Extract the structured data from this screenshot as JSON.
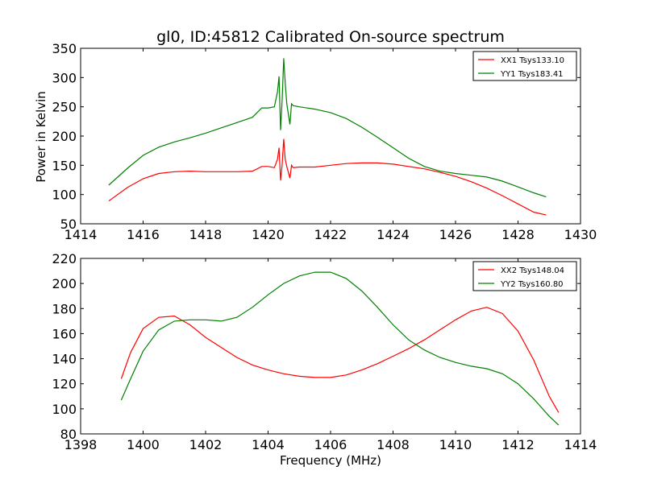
{
  "chart_data": [
    {
      "type": "line",
      "title": "gl0, ID:45812 Calibrated On-source spectrum",
      "xlabel": "",
      "ylabel": "Power in Kelvin",
      "xlim": [
        1414,
        1430
      ],
      "ylim": [
        50,
        350
      ],
      "xticks": [
        1414,
        1416,
        1418,
        1420,
        1422,
        1424,
        1426,
        1428,
        1430
      ],
      "yticks": [
        50,
        100,
        150,
        200,
        250,
        300,
        350
      ],
      "legend_position": "top-right",
      "series": [
        {
          "name": "XX1 Tsys133.10",
          "color": "#ff0000",
          "x": [
            1414.9,
            1415.5,
            1416.0,
            1416.5,
            1417.0,
            1417.5,
            1418.0,
            1418.5,
            1419.0,
            1419.5,
            1419.8,
            1420.0,
            1420.2,
            1420.3,
            1420.35,
            1420.4,
            1420.45,
            1420.5,
            1420.55,
            1420.6,
            1420.7,
            1420.75,
            1420.8,
            1421.0,
            1421.5,
            1422.0,
            1422.5,
            1423.0,
            1423.5,
            1424.0,
            1424.5,
            1425.0,
            1425.5,
            1426.0,
            1426.5,
            1427.0,
            1427.5,
            1428.0,
            1428.5,
            1428.9
          ],
          "values": [
            89,
            112,
            127,
            136,
            139,
            140,
            139,
            139,
            139,
            140,
            148,
            148,
            146,
            160,
            180,
            124,
            150,
            195,
            160,
            148,
            128,
            150,
            146,
            147,
            147,
            150,
            153,
            154,
            154,
            152,
            148,
            144,
            138,
            131,
            122,
            111,
            98,
            84,
            70,
            65
          ]
        },
        {
          "name": "YY1 Tsys183.41",
          "color": "#008000",
          "x": [
            1414.9,
            1415.5,
            1416.0,
            1416.5,
            1417.0,
            1417.5,
            1418.0,
            1418.5,
            1419.0,
            1419.5,
            1419.8,
            1420.0,
            1420.2,
            1420.3,
            1420.35,
            1420.4,
            1420.45,
            1420.5,
            1420.55,
            1420.6,
            1420.7,
            1420.75,
            1420.8,
            1421.0,
            1421.5,
            1422.0,
            1422.5,
            1423.0,
            1423.5,
            1424.0,
            1424.5,
            1425.0,
            1425.5,
            1426.0,
            1426.5,
            1427.0,
            1427.5,
            1428.0,
            1428.5,
            1428.9
          ],
          "values": [
            116,
            145,
            167,
            181,
            190,
            197,
            205,
            214,
            223,
            232,
            248,
            248,
            250,
            275,
            302,
            210,
            260,
            333,
            290,
            255,
            220,
            255,
            252,
            250,
            246,
            240,
            230,
            215,
            198,
            180,
            162,
            148,
            140,
            136,
            133,
            130,
            123,
            113,
            103,
            96
          ]
        }
      ]
    },
    {
      "type": "line",
      "title": "",
      "xlabel": "Frequency (MHz)",
      "ylabel": "",
      "xlim": [
        1398,
        1414
      ],
      "ylim": [
        80,
        220
      ],
      "xticks": [
        1398,
        1400,
        1402,
        1404,
        1406,
        1408,
        1410,
        1412,
        1414
      ],
      "yticks": [
        80,
        100,
        120,
        140,
        160,
        180,
        200,
        220
      ],
      "legend_position": "top-right",
      "series": [
        {
          "name": "XX2 Tsys148.04",
          "color": "#ff0000",
          "x": [
            1399.3,
            1399.6,
            1400.0,
            1400.5,
            1401.0,
            1401.5,
            1402.0,
            1402.5,
            1403.0,
            1403.5,
            1404.0,
            1404.5,
            1405.0,
            1405.5,
            1406.0,
            1406.5,
            1407.0,
            1407.5,
            1408.0,
            1408.5,
            1409.0,
            1409.5,
            1410.0,
            1410.5,
            1411.0,
            1411.5,
            1412.0,
            1412.5,
            1413.0,
            1413.3
          ],
          "values": [
            124,
            145,
            164,
            173,
            174,
            167,
            157,
            149,
            141,
            135,
            131,
            128,
            126,
            125,
            125,
            127,
            131,
            136,
            142,
            148,
            155,
            163,
            171,
            178,
            181,
            176,
            162,
            139,
            110,
            97
          ]
        },
        {
          "name": "YY2 Tsys160.80",
          "color": "#008000",
          "x": [
            1399.3,
            1399.6,
            1400.0,
            1400.5,
            1401.0,
            1401.5,
            1402.0,
            1402.5,
            1403.0,
            1403.5,
            1404.0,
            1404.5,
            1405.0,
            1405.5,
            1406.0,
            1406.5,
            1407.0,
            1407.5,
            1408.0,
            1408.5,
            1409.0,
            1409.5,
            1410.0,
            1410.5,
            1411.0,
            1411.5,
            1412.0,
            1412.5,
            1413.0,
            1413.3
          ],
          "values": [
            107,
            124,
            146,
            163,
            170,
            171,
            171,
            170,
            173,
            181,
            191,
            200,
            206,
            209,
            209,
            204,
            194,
            181,
            167,
            155,
            147,
            141,
            137,
            134,
            132,
            128,
            120,
            108,
            94,
            87
          ]
        }
      ]
    }
  ]
}
